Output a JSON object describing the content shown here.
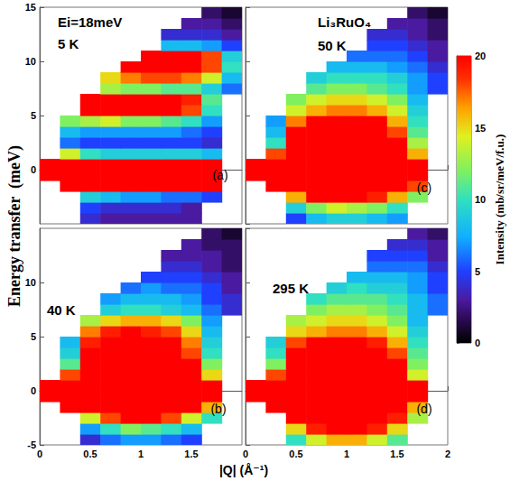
{
  "chart_data": {
    "type": "heatmap",
    "y_label": "Energy transfer  (meV)",
    "x_label": "|Q| (Å⁻¹)",
    "xlim": [
      0,
      2
    ],
    "ylim": [
      -5,
      15
    ],
    "x_bins": [
      0,
      0.2,
      0.4,
      0.6,
      0.8,
      1,
      1.2,
      1.4,
      1.6,
      1.8,
      2
    ],
    "y_bins": [
      -5,
      -4,
      -3,
      -2,
      -1,
      0,
      1,
      2,
      3,
      4,
      5,
      6,
      7,
      8,
      9,
      10,
      11,
      12,
      13,
      14,
      15
    ],
    "colorbar": {
      "label": "Intensity (mb/sr/meV/f.u.)",
      "range": [
        0,
        20
      ],
      "ticks": [
        0,
        5,
        10,
        15,
        20
      ]
    },
    "panels": [
      {
        "label": "(a)",
        "texts": [
          "Ei=18meV",
          "5 K"
        ],
        "xticks": [
          0,
          0.5,
          1,
          1.5
        ],
        "yticks": [
          0,
          5,
          10,
          15
        ],
        "tick_labels": "y",
        "cells": [
          [
            null,
            null,
            4,
            3,
            3,
            3,
            3,
            3,
            null,
            null
          ],
          [
            null,
            null,
            5,
            4,
            4,
            4,
            4,
            3,
            null,
            null
          ],
          [
            null,
            null,
            9,
            8,
            7,
            7,
            6,
            6,
            5,
            null
          ],
          [
            null,
            20,
            22,
            22,
            22,
            22,
            22,
            22,
            20,
            null
          ],
          [
            25,
            25,
            25,
            25,
            25,
            25,
            25,
            25,
            25,
            null
          ],
          [
            25,
            25,
            25,
            25,
            25,
            25,
            25,
            25,
            25,
            null
          ],
          [
            null,
            14,
            10,
            9,
            9,
            9,
            9,
            9,
            8,
            null
          ],
          [
            null,
            6,
            5,
            5,
            5,
            5,
            5,
            5,
            4,
            null
          ],
          [
            null,
            8,
            7,
            7,
            7,
            7,
            7,
            6,
            5,
            null
          ],
          [
            null,
            12,
            13,
            14,
            12,
            12,
            11,
            10,
            7,
            null
          ],
          [
            null,
            null,
            20,
            21,
            21,
            20,
            20,
            18,
            10,
            null
          ],
          [
            null,
            null,
            20,
            21,
            21,
            21,
            20,
            19,
            11,
            null
          ],
          [
            null,
            null,
            null,
            13,
            12,
            12,
            11,
            11,
            9,
            6
          ],
          [
            null,
            null,
            null,
            15,
            17,
            18,
            18,
            17,
            14,
            8
          ],
          [
            null,
            null,
            null,
            null,
            20,
            21,
            21,
            20,
            18,
            10
          ],
          [
            null,
            null,
            null,
            null,
            null,
            20,
            20,
            20,
            18,
            9
          ],
          [
            null,
            null,
            null,
            null,
            null,
            null,
            8,
            8,
            7,
            5
          ],
          [
            null,
            null,
            null,
            null,
            null,
            null,
            4,
            4,
            4,
            3
          ],
          [
            null,
            null,
            null,
            null,
            null,
            null,
            null,
            3,
            3,
            2
          ],
          [
            null,
            null,
            null,
            null,
            null,
            null,
            null,
            null,
            2,
            1
          ]
        ]
      },
      {
        "label": "(b)",
        "texts": [
          "40 K"
        ],
        "xticks": [
          0,
          0.5,
          1,
          1.5
        ],
        "yticks": [
          -5,
          0,
          5,
          10
        ],
        "cells": [
          [
            null,
            null,
            4,
            6,
            7,
            7,
            6,
            5,
            null,
            null
          ],
          [
            null,
            null,
            7,
            10,
            12,
            11,
            10,
            8,
            null,
            null
          ],
          [
            null,
            null,
            14,
            18,
            20,
            20,
            18,
            14,
            10,
            null
          ],
          [
            null,
            22,
            24,
            25,
            25,
            25,
            24,
            22,
            16,
            null
          ],
          [
            25,
            25,
            25,
            25,
            25,
            25,
            25,
            25,
            22,
            null
          ],
          [
            25,
            25,
            25,
            25,
            25,
            25,
            25,
            25,
            22,
            null
          ],
          [
            null,
            18,
            24,
            25,
            25,
            25,
            24,
            22,
            15,
            null
          ],
          [
            null,
            11,
            22,
            24,
            24,
            24,
            22,
            20,
            12,
            null
          ],
          [
            null,
            9,
            20,
            22,
            23,
            22,
            21,
            18,
            10,
            null
          ],
          [
            null,
            8,
            19,
            21,
            22,
            21,
            20,
            17,
            9,
            null
          ],
          [
            null,
            null,
            17,
            19,
            20,
            19,
            18,
            15,
            8,
            null
          ],
          [
            null,
            null,
            13,
            15,
            16,
            16,
            15,
            12,
            7,
            null
          ],
          [
            null,
            null,
            null,
            9,
            10,
            10,
            9,
            8,
            6,
            4
          ],
          [
            null,
            null,
            null,
            7,
            8,
            8,
            8,
            7,
            5,
            4
          ],
          [
            null,
            null,
            null,
            null,
            6,
            7,
            6,
            6,
            5,
            3
          ],
          [
            null,
            null,
            null,
            null,
            null,
            5,
            5,
            5,
            4,
            3
          ],
          [
            null,
            null,
            null,
            null,
            null,
            null,
            4,
            4,
            3,
            2
          ],
          [
            null,
            null,
            null,
            null,
            null,
            null,
            3,
            3,
            3,
            2
          ],
          [
            null,
            null,
            null,
            null,
            null,
            null,
            null,
            3,
            2,
            2
          ],
          [
            null,
            null,
            null,
            null,
            null,
            null,
            null,
            null,
            2,
            1
          ]
        ]
      },
      {
        "label": "(c)",
        "texts": [
          "Li₃RuO₄",
          "50 K"
        ],
        "xticks": [
          0,
          0.5,
          1,
          1.5,
          2
        ],
        "yticks": [
          -5,
          0,
          5,
          10,
          15
        ],
        "tick_labels": false,
        "cells": [
          [
            null,
            null,
            5,
            8,
            9,
            9,
            8,
            7,
            null,
            null
          ],
          [
            null,
            null,
            9,
            12,
            14,
            13,
            12,
            10,
            null,
            null
          ],
          [
            null,
            null,
            16,
            20,
            21,
            21,
            19,
            16,
            12,
            null
          ],
          [
            null,
            22,
            24,
            25,
            25,
            25,
            24,
            22,
            18,
            null
          ],
          [
            25,
            25,
            25,
            25,
            25,
            25,
            25,
            25,
            22,
            null
          ],
          [
            25,
            25,
            25,
            25,
            25,
            25,
            25,
            25,
            22,
            null
          ],
          [
            null,
            18,
            24,
            25,
            25,
            25,
            24,
            22,
            16,
            null
          ],
          [
            null,
            10,
            22,
            24,
            24,
            24,
            22,
            20,
            13,
            null
          ],
          [
            null,
            8,
            20,
            22,
            22,
            22,
            21,
            18,
            11,
            null
          ],
          [
            null,
            7,
            17,
            20,
            21,
            21,
            20,
            16,
            10,
            null
          ],
          [
            null,
            null,
            14,
            16,
            17,
            17,
            16,
            14,
            9,
            null
          ],
          [
            null,
            null,
            12,
            14,
            15,
            15,
            14,
            12,
            8,
            null
          ],
          [
            null,
            null,
            null,
            11,
            12,
            12,
            11,
            10,
            7,
            5
          ],
          [
            null,
            null,
            null,
            9,
            10,
            10,
            10,
            9,
            7,
            5
          ],
          [
            null,
            null,
            null,
            null,
            8,
            8,
            8,
            7,
            6,
            4
          ],
          [
            null,
            null,
            null,
            null,
            null,
            6,
            6,
            6,
            5,
            3
          ],
          [
            null,
            null,
            null,
            null,
            null,
            null,
            5,
            5,
            4,
            3
          ],
          [
            null,
            null,
            null,
            null,
            null,
            null,
            4,
            4,
            3,
            2
          ],
          [
            null,
            null,
            null,
            null,
            null,
            null,
            null,
            3,
            3,
            2
          ],
          [
            null,
            null,
            null,
            null,
            null,
            null,
            null,
            null,
            2,
            1
          ]
        ]
      },
      {
        "label": "(d)",
        "texts": [
          "295 K"
        ],
        "xticks": [
          0,
          0.5,
          1,
          1.5,
          2
        ],
        "yticks": [
          -5,
          0,
          5,
          10,
          15
        ],
        "tick_labels": "x",
        "cells": [
          [
            null,
            null,
            10,
            14,
            16,
            16,
            14,
            11,
            null,
            null
          ],
          [
            null,
            null,
            15,
            19,
            21,
            21,
            19,
            15,
            null,
            null
          ],
          [
            null,
            null,
            20,
            23,
            24,
            24,
            22,
            19,
            13,
            null
          ],
          [
            null,
            22,
            25,
            25,
            25,
            25,
            24,
            22,
            16,
            null
          ],
          [
            25,
            25,
            25,
            25,
            25,
            25,
            25,
            25,
            20,
            null
          ],
          [
            25,
            25,
            25,
            25,
            25,
            25,
            25,
            25,
            20,
            null
          ],
          [
            null,
            18,
            25,
            25,
            25,
            25,
            24,
            22,
            14,
            null
          ],
          [
            null,
            12,
            23,
            24,
            24,
            24,
            22,
            20,
            12,
            null
          ],
          [
            null,
            10,
            21,
            22,
            22,
            22,
            21,
            18,
            11,
            null
          ],
          [
            null,
            9,
            18,
            20,
            20,
            20,
            19,
            16,
            10,
            null
          ],
          [
            null,
            null,
            15,
            16,
            17,
            17,
            16,
            14,
            9,
            null
          ],
          [
            null,
            null,
            13,
            14,
            15,
            15,
            14,
            12,
            8,
            null
          ],
          [
            null,
            null,
            null,
            12,
            13,
            13,
            12,
            11,
            8,
            6
          ],
          [
            null,
            null,
            null,
            10,
            11,
            11,
            11,
            10,
            8,
            6
          ],
          [
            null,
            null,
            null,
            null,
            9,
            10,
            9,
            9,
            7,
            5
          ],
          [
            null,
            null,
            null,
            null,
            null,
            8,
            8,
            8,
            7,
            5
          ],
          [
            null,
            null,
            null,
            null,
            null,
            null,
            6,
            6,
            6,
            4
          ],
          [
            null,
            null,
            null,
            null,
            null,
            null,
            5,
            5,
            5,
            3
          ],
          [
            null,
            null,
            null,
            null,
            null,
            null,
            null,
            4,
            4,
            3
          ],
          [
            null,
            null,
            null,
            null,
            null,
            null,
            null,
            null,
            3,
            2
          ]
        ]
      }
    ]
  }
}
